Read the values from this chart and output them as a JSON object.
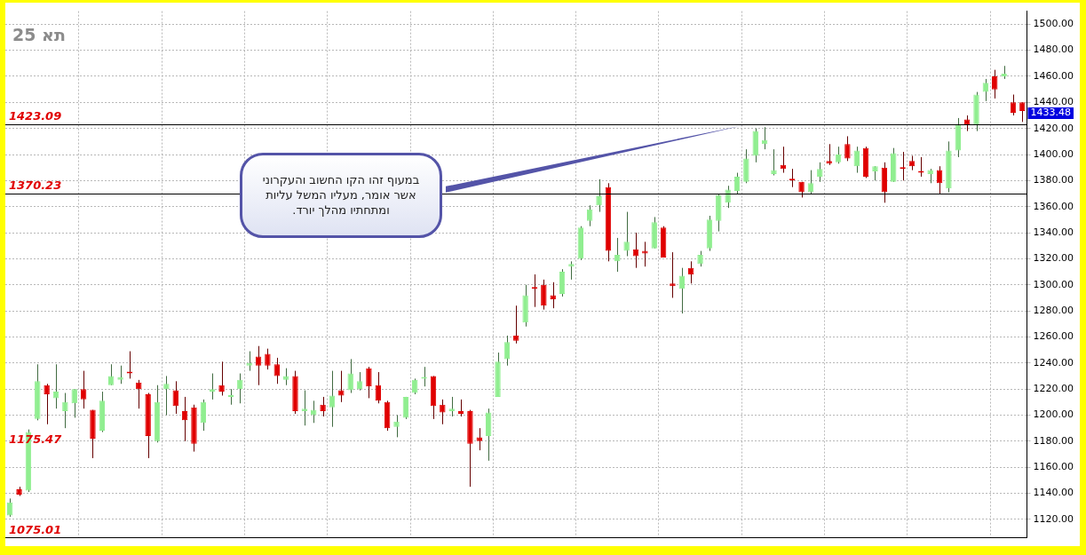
{
  "chart_data": {
    "type": "candlestick",
    "title": "תא 25",
    "categories": [
      null,
      null,
      null,
      null,
      null,
      null,
      null,
      null,
      null,
      null,
      null,
      null,
      null,
      null,
      null,
      null,
      null,
      null,
      null,
      null,
      null,
      null,
      null,
      null,
      null,
      null,
      null,
      null,
      null,
      null,
      null,
      null,
      null,
      null,
      null,
      null,
      null,
      null,
      null,
      null,
      null,
      null,
      null,
      null,
      null,
      null,
      null,
      null,
      null,
      null,
      null,
      null,
      null,
      null,
      null,
      null,
      null,
      null,
      null,
      null,
      null,
      null,
      null,
      null,
      null,
      null,
      null,
      null,
      null,
      null,
      null,
      null,
      null,
      null,
      null,
      null,
      null,
      null,
      null,
      null,
      null,
      null,
      null,
      null,
      null,
      null,
      null,
      null,
      null,
      null,
      null,
      null,
      null,
      null,
      null,
      null,
      null,
      null,
      null,
      null,
      null,
      null,
      null,
      null,
      null,
      null,
      null,
      null,
      null,
      null,
      null
    ],
    "ohlc": [
      [
        1123,
        1136,
        1122,
        1133
      ],
      [
        1143,
        1145,
        1138,
        1139
      ],
      [
        1142,
        1189,
        1141,
        1187
      ],
      [
        1197,
        1239,
        1196,
        1226
      ],
      [
        1223,
        1224,
        1193,
        1216
      ],
      [
        1213,
        1239,
        1205,
        1218
      ],
      [
        1203,
        1217,
        1190,
        1210
      ],
      [
        1209,
        1220,
        1198,
        1220
      ],
      [
        1220,
        1234,
        1205,
        1212
      ],
      [
        1204,
        1204,
        1167,
        1182
      ],
      [
        1188,
        1218,
        1187,
        1211
      ],
      [
        1223,
        1239,
        1223,
        1230
      ],
      [
        1227,
        1238,
        1224,
        1229
      ],
      [
        1233,
        1249,
        1228,
        1232
      ],
      [
        1225,
        1227,
        1205,
        1220
      ],
      [
        1216,
        1217,
        1167,
        1184
      ],
      [
        1180,
        1223,
        1179,
        1210
      ],
      [
        1220,
        1230,
        1200,
        1224
      ],
      [
        1219,
        1226,
        1201,
        1207
      ],
      [
        1203,
        1214,
        1180,
        1196
      ],
      [
        1206,
        1208,
        1172,
        1178
      ],
      [
        1194,
        1212,
        1188,
        1210
      ],
      [
        1218,
        1232,
        1212,
        1220
      ],
      [
        1223,
        1241,
        1215,
        1218
      ],
      [
        1214,
        1220,
        1208,
        1215
      ],
      [
        1220,
        1232,
        1209,
        1227
      ],
      [
        1238,
        1249,
        1234,
        1240
      ],
      [
        1245,
        1253,
        1223,
        1238
      ],
      [
        1247,
        1251,
        1235,
        1238
      ],
      [
        1239,
        1244,
        1224,
        1230
      ],
      [
        1227,
        1236,
        1223,
        1230
      ],
      [
        1230,
        1234,
        1201,
        1203
      ],
      [
        1203,
        1219,
        1192,
        1205
      ],
      [
        1200,
        1211,
        1194,
        1204
      ],
      [
        1208,
        1214,
        1199,
        1203
      ],
      [
        1206,
        1234,
        1191,
        1215
      ],
      [
        1219,
        1234,
        1210,
        1215
      ],
      [
        1219,
        1243,
        1217,
        1232
      ],
      [
        1220,
        1233,
        1219,
        1226
      ],
      [
        1236,
        1237,
        1213,
        1222
      ],
      [
        1223,
        1233,
        1209,
        1211
      ],
      [
        1210,
        1211,
        1188,
        1190
      ],
      [
        1191,
        1200,
        1183,
        1195
      ],
      [
        1198,
        1214,
        1197,
        1214
      ],
      [
        1217,
        1228,
        1216,
        1227
      ],
      [
        1228,
        1237,
        1222,
        1229
      ],
      [
        1230,
        1230,
        1197,
        1207
      ],
      [
        1208,
        1212,
        1193,
        1202
      ],
      [
        1203,
        1214,
        1199,
        1205
      ],
      [
        1203,
        1212,
        1199,
        1201
      ],
      [
        1203,
        1204,
        1145,
        1178
      ],
      [
        1183,
        1190,
        1173,
        1180
      ],
      [
        1184,
        1205,
        1165,
        1202
      ],
      [
        1214,
        1248,
        1214,
        1241
      ],
      [
        1243,
        1261,
        1238,
        1256
      ],
      [
        1261,
        1284,
        1255,
        1257
      ],
      [
        1271,
        1300,
        1268,
        1292
      ],
      [
        1298,
        1308,
        1283,
        1297
      ],
      [
        1300,
        1304,
        1281,
        1284
      ],
      [
        1292,
        1302,
        1282,
        1289
      ],
      [
        1293,
        1312,
        1291,
        1310
      ],
      [
        1314,
        1318,
        1304,
        1316
      ],
      [
        1320,
        1345,
        1319,
        1344
      ],
      [
        1349,
        1361,
        1345,
        1358
      ],
      [
        1361,
        1381,
        1356,
        1368
      ],
      [
        1375,
        1378,
        1318,
        1326
      ],
      [
        1318,
        1336,
        1310,
        1323
      ],
      [
        1326,
        1356,
        1322,
        1333
      ],
      [
        1327,
        1340,
        1313,
        1322
      ],
      [
        1326,
        1333,
        1314,
        1324
      ],
      [
        1328,
        1352,
        1328,
        1348
      ],
      [
        1344,
        1345,
        1321,
        1321
      ],
      [
        1301,
        1325,
        1290,
        1299
      ],
      [
        1297,
        1313,
        1278,
        1307
      ],
      [
        1313,
        1318,
        1301,
        1308
      ],
      [
        1316,
        1326,
        1314,
        1323
      ],
      [
        1328,
        1353,
        1326,
        1350
      ],
      [
        1349,
        1370,
        1341,
        1369
      ],
      [
        1363,
        1376,
        1359,
        1373
      ],
      [
        1372,
        1386,
        1370,
        1383
      ],
      [
        1379,
        1404,
        1378,
        1397
      ],
      [
        1399,
        1420,
        1394,
        1418
      ],
      [
        1408,
        1421,
        1404,
        1411
      ],
      [
        1385,
        1404,
        1384,
        1388
      ],
      [
        1392,
        1406,
        1386,
        1389
      ],
      [
        1381,
        1389,
        1375,
        1380
      ],
      [
        1379,
        1379,
        1367,
        1371
      ],
      [
        1371,
        1388,
        1370,
        1378
      ],
      [
        1383,
        1394,
        1379,
        1389
      ],
      [
        1395,
        1408,
        1392,
        1393
      ],
      [
        1394,
        1406,
        1393,
        1400
      ],
      [
        1408,
        1414,
        1395,
        1397
      ],
      [
        1391,
        1406,
        1386,
        1403
      ],
      [
        1405,
        1406,
        1382,
        1383
      ],
      [
        1387,
        1391,
        1380,
        1391
      ],
      [
        1390,
        1394,
        1363,
        1371
      ],
      [
        1379,
        1405,
        1379,
        1401
      ],
      [
        1390,
        1402,
        1380,
        1389
      ],
      [
        1395,
        1399,
        1388,
        1391
      ],
      [
        1387,
        1398,
        1383,
        1386
      ],
      [
        1385,
        1389,
        1378,
        1388
      ],
      [
        1388,
        1391,
        1370,
        1378
      ],
      [
        1374,
        1410,
        1371,
        1403
      ],
      [
        1403,
        1428,
        1398,
        1423
      ],
      [
        1427,
        1430,
        1418,
        1423
      ],
      [
        1423,
        1448,
        1418,
        1446
      ],
      [
        1448,
        1458,
        1441,
        1455
      ],
      [
        1460,
        1465,
        1443,
        1450
      ],
      [
        1460,
        1468,
        1458,
        1462
      ],
      [
        1440,
        1446,
        1430,
        1432
      ],
      [
        1440,
        1440,
        1425,
        1433.48
      ]
    ],
    "colors": [
      "#90ee90",
      "#e00000",
      "#90ee90",
      "#90ee90",
      "#e00000",
      "#90ee90",
      "#90ee90",
      "#90ee90",
      "#e00000",
      "#e00000",
      "#90ee90",
      "#90ee90",
      "#90ee90",
      "#e00000",
      "#e00000",
      "#e00000",
      "#90ee90",
      "#90ee90",
      "#e00000",
      "#e00000",
      "#e00000",
      "#90ee90",
      "#90ee90",
      "#e00000",
      "#90ee90",
      "#90ee90",
      "#90ee90",
      "#e00000",
      "#e00000",
      "#e00000",
      "#90ee90",
      "#e00000",
      "#90ee90",
      "#90ee90",
      "#e00000",
      "#90ee90",
      "#e00000",
      "#90ee90",
      "#90ee90",
      "#e00000",
      "#e00000",
      "#e00000",
      "#90ee90",
      "#90ee90",
      "#90ee90",
      "#90ee90",
      "#e00000",
      "#e00000",
      "#90ee90",
      "#e00000",
      "#e00000",
      "#e00000",
      "#90ee90",
      "#90ee90",
      "#90ee90",
      "#e00000",
      "#90ee90",
      "#e00000",
      "#e00000",
      "#e00000",
      "#90ee90",
      "#90ee90",
      "#90ee90",
      "#90ee90",
      "#90ee90",
      "#e00000",
      "#90ee90",
      "#90ee90",
      "#e00000",
      "#e00000",
      "#90ee90",
      "#e00000",
      "#e00000",
      "#90ee90",
      "#e00000",
      "#90ee90",
      "#90ee90",
      "#90ee90",
      "#90ee90",
      "#90ee90",
      "#90ee90",
      "#90ee90",
      "#90ee90",
      "#90ee90",
      "#e00000",
      "#e00000",
      "#e00000",
      "#90ee90",
      "#90ee90",
      "#e00000",
      "#90ee90",
      "#e00000",
      "#90ee90",
      "#e00000",
      "#90ee90",
      "#e00000",
      "#90ee90",
      "#e00000",
      "#e00000",
      "#e00000",
      "#90ee90",
      "#e00000",
      "#90ee90",
      "#90ee90",
      "#e00000",
      "#90ee90",
      "#90ee90",
      "#e00000",
      "#90ee90",
      "#e00000",
      "#e00000"
    ],
    "ylim": [
      1106,
      1510
    ],
    "yticks": [
      {
        "value": 1120,
        "label": "1120.00"
      },
      {
        "value": 1140,
        "label": "1140.00"
      },
      {
        "value": 1160,
        "label": "1160.00"
      },
      {
        "value": 1180,
        "label": "1180.00"
      },
      {
        "value": 1200,
        "label": "1200.00"
      },
      {
        "value": 1220,
        "label": "1220.00"
      },
      {
        "value": 1240,
        "label": "1240.00"
      },
      {
        "value": 1260,
        "label": "1260.00"
      },
      {
        "value": 1280,
        "label": "1280.00"
      },
      {
        "value": 1300,
        "label": "1300.00"
      },
      {
        "value": 1320,
        "label": "1320.00"
      },
      {
        "value": 1340,
        "label": "1340.00"
      },
      {
        "value": 1360,
        "label": "1360.00"
      },
      {
        "value": 1380,
        "label": "1380.00"
      },
      {
        "value": 1400,
        "label": "1400.00"
      },
      {
        "value": 1420,
        "label": "1420.00"
      },
      {
        "value": 1440,
        "label": "1440.00"
      },
      {
        "value": 1460,
        "label": "1460.00"
      },
      {
        "value": 1480,
        "label": "1480.00"
      },
      {
        "value": 1500,
        "label": "1500.00"
      }
    ],
    "ref_lines": [
      {
        "axis": "y",
        "value": 1423.09,
        "label": "1423.09",
        "color": "#000000"
      },
      {
        "axis": "y",
        "value": 1370.23,
        "label": "1370.23",
        "color": "#000000"
      }
    ],
    "annotations": [
      "1433.48",
      "במעוף זהו הקו החשוב והעקרוני אשר אומר, מעליו המשל עליות ומתחתיו   מהלך יורד.",
      "1175.47",
      "1075.01"
    ],
    "grid": true,
    "legend": false
  }
}
